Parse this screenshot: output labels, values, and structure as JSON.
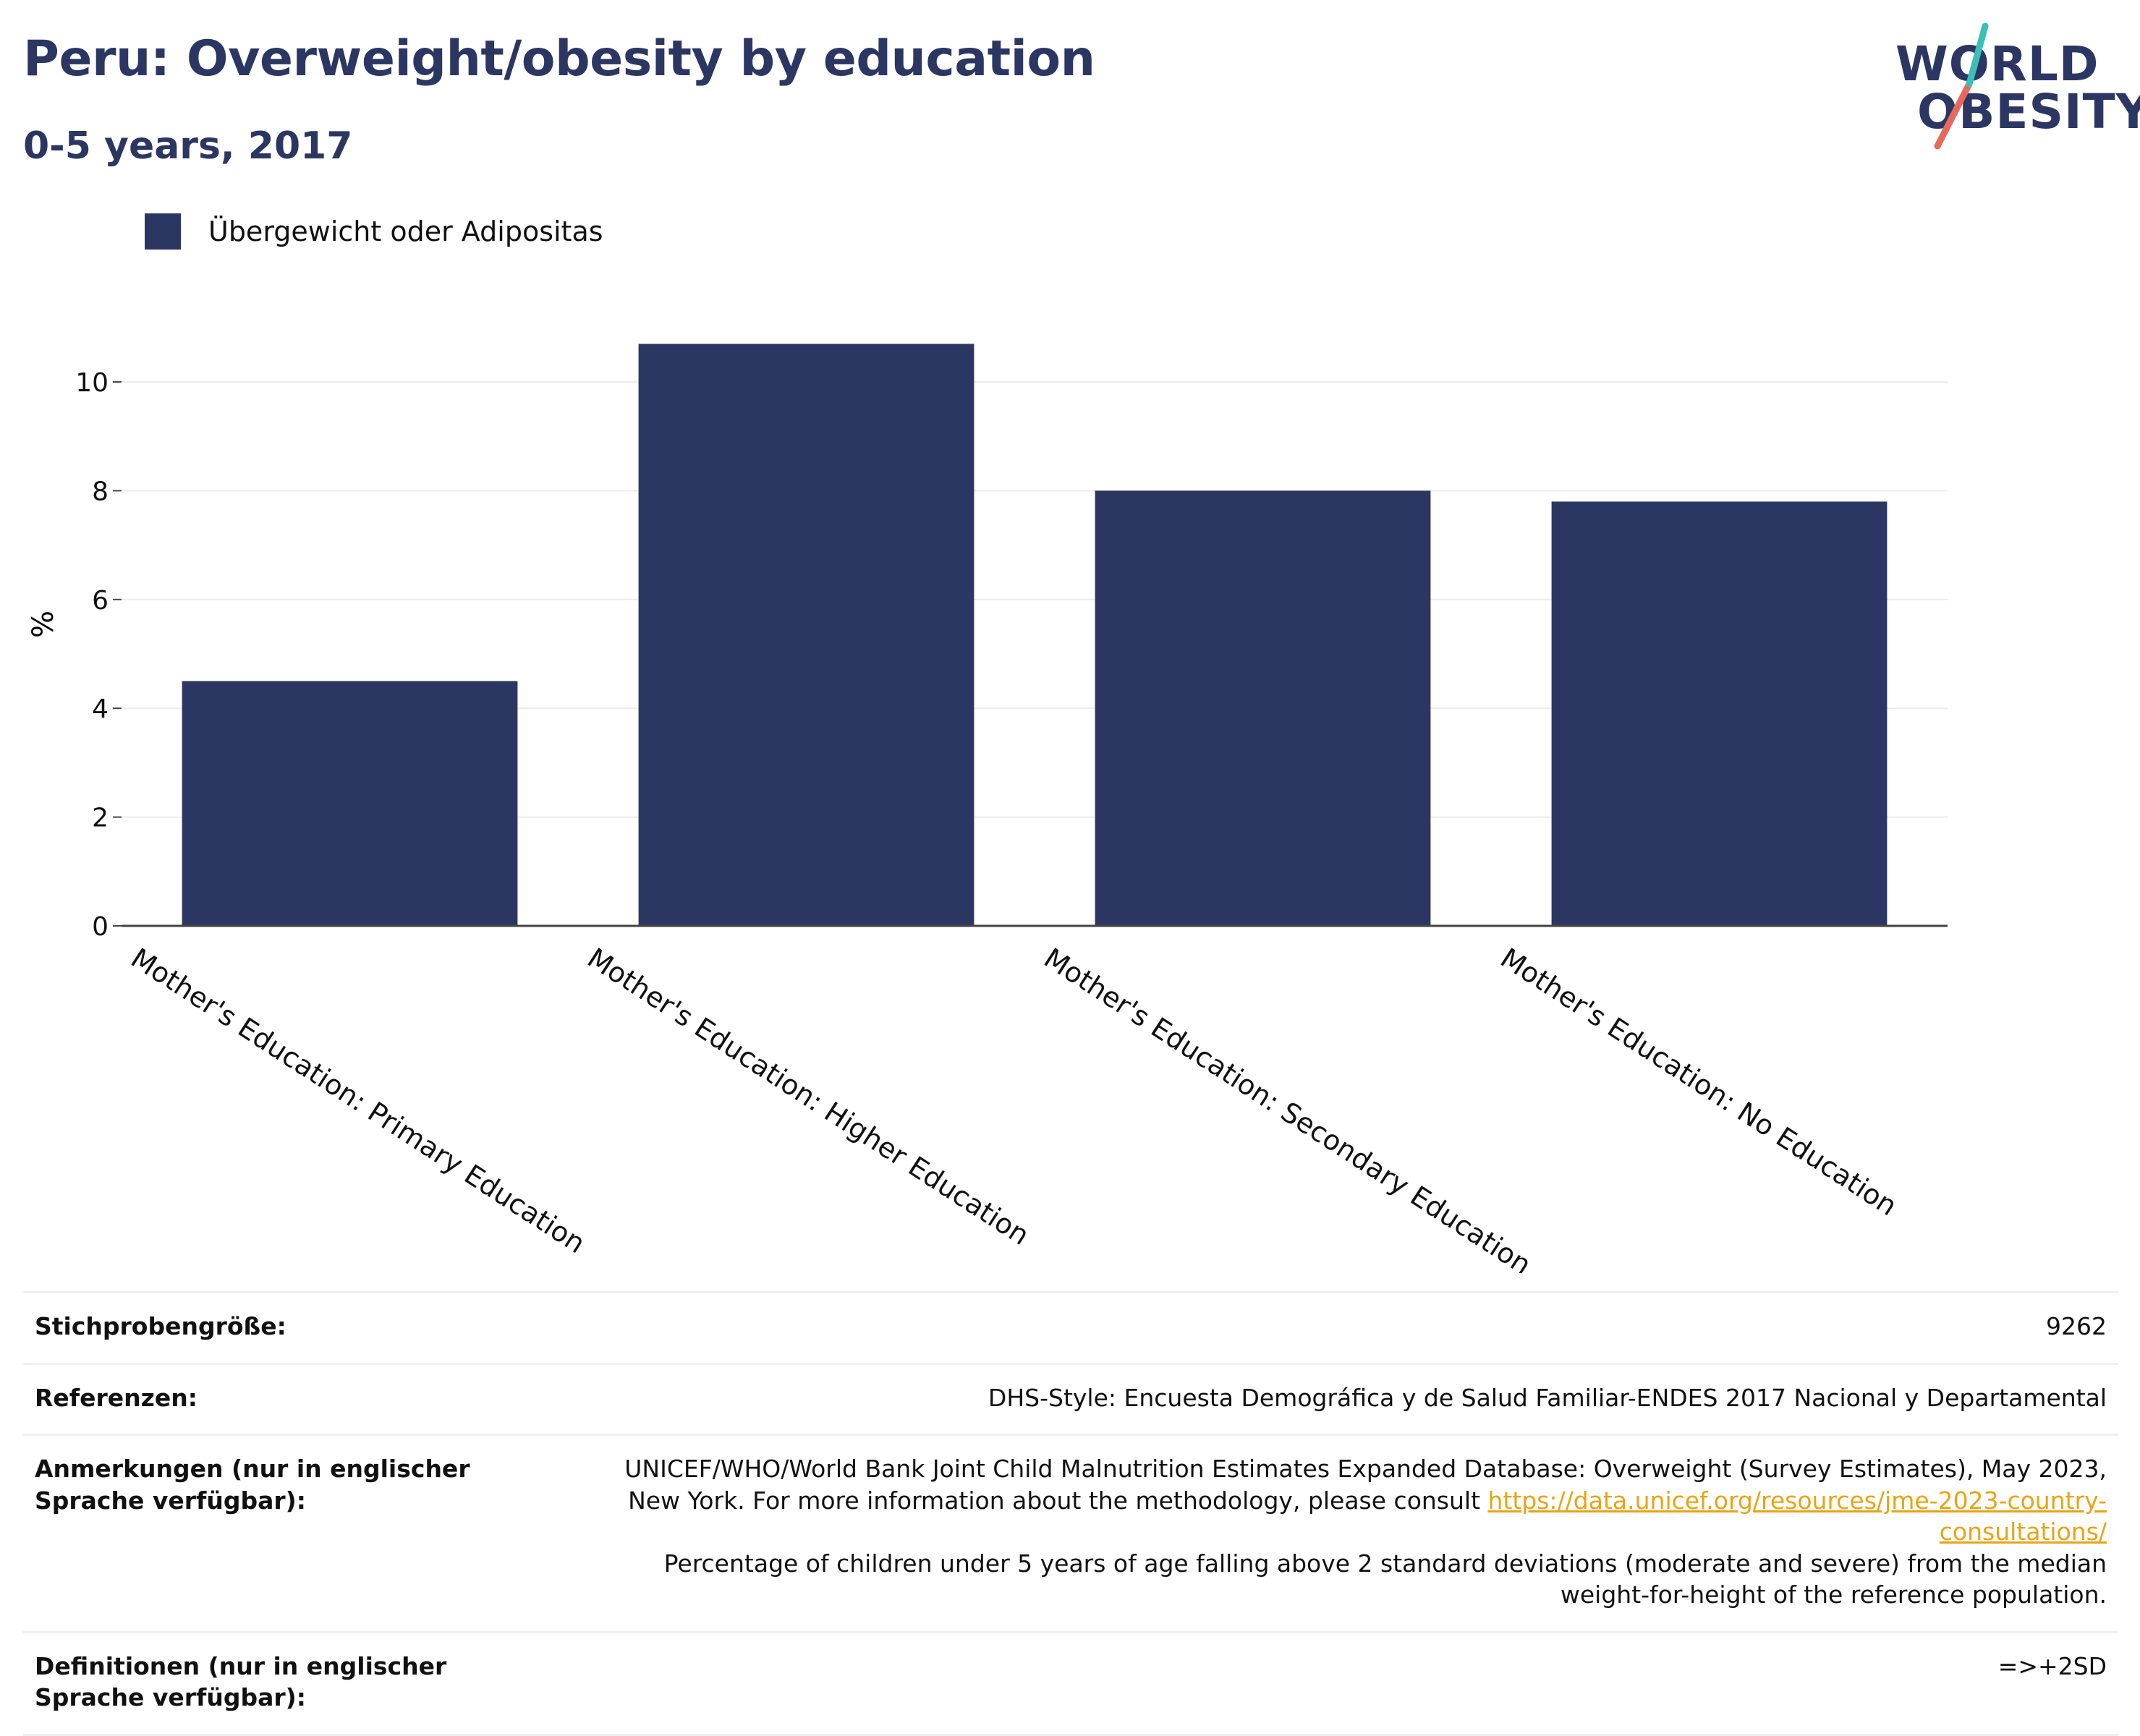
{
  "title": "Peru: Overweight/obesity by education",
  "subtitle": "0-5 years, 2017",
  "logo": {
    "line1": "WORLD",
    "line2": "OBESITY"
  },
  "colors": {
    "bar": "#2b3762",
    "title": "#2b3762",
    "link": "#e8a415",
    "logo_teal": "#3bbfb6",
    "logo_coral": "#e8685c"
  },
  "chart_data": {
    "type": "bar",
    "legend_position": "top-left",
    "ylabel": "%",
    "ylim": [
      0,
      11
    ],
    "yticks": [
      0,
      2,
      4,
      6,
      8,
      10
    ],
    "grid": true,
    "categories": [
      "Mother's Education: Primary Education",
      "Mother's Education: Higher Education",
      "Mother's Education: Secondary Education",
      "Mother's Education: No Education"
    ],
    "series": [
      {
        "name": "Übergewicht oder Adipositas",
        "values": [
          4.5,
          10.7,
          8.0,
          7.8
        ]
      }
    ]
  },
  "info": {
    "sample": {
      "label": "Stichprobengröße:",
      "value": "9262"
    },
    "references": {
      "label": "Referenzen:",
      "value": "DHS-Style: Encuesta Demográfica y de Salud Familiar-ENDES 2017 Nacional y Departamental"
    },
    "notes": {
      "label": "Anmerkungen (nur in englischer Sprache verfügbar):",
      "text1": "UNICEF/WHO/World Bank Joint Child Malnutrition Estimates Expanded Database: Overweight (Survey Estimates), May 2023, New York. For more information about the methodology, please consult ",
      "link": "https://data.unicef.org/resources/jme-2023-country-consultations/",
      "text2": "Percentage of children under 5 years of age falling above 2 standard deviations (moderate and severe) from the median weight-for-height of the reference population."
    },
    "definitions": {
      "label": "Definitionen (nur in englischer Sprache verfügbar):",
      "value": "=>+2SD"
    }
  }
}
